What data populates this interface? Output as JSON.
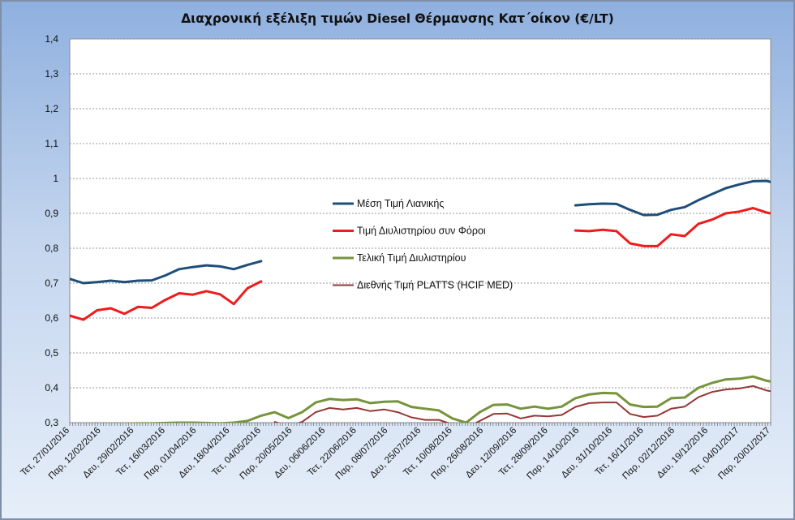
{
  "chart_data": {
    "type": "line",
    "title": "Διαχρονική εξέλιξη τιμών Diesel Θέρμανσης Κατ΄οίκον (€/LT)",
    "xlabel": "",
    "ylabel": "",
    "ylim": [
      0.3,
      1.4
    ],
    "yticks": [
      "0,3",
      "0,4",
      "0,5",
      "0,6",
      "0,7",
      "0,8",
      "0,9",
      "1",
      "1,1",
      "1,2",
      "1,3",
      "1,4"
    ],
    "grid": "horizontal-dashed",
    "legend_position": "center",
    "x": [
      "2016-01-27",
      "2016-02-03",
      "2016-02-10",
      "2016-02-17",
      "2016-02-24",
      "2016-03-02",
      "2016-03-09",
      "2016-03-16",
      "2016-03-23",
      "2016-03-30",
      "2016-04-06",
      "2016-04-13",
      "2016-04-20",
      "2016-04-27",
      "2016-05-04",
      "2016-05-11",
      "2016-05-18",
      "2016-05-25",
      "2016-06-01",
      "2016-06-08",
      "2016-06-15",
      "2016-06-22",
      "2016-06-29",
      "2016-07-06",
      "2016-07-13",
      "2016-07-20",
      "2016-07-27",
      "2016-08-03",
      "2016-08-10",
      "2016-08-17",
      "2016-08-24",
      "2016-08-31",
      "2016-09-07",
      "2016-09-14",
      "2016-09-21",
      "2016-09-28",
      "2016-10-05",
      "2016-10-12",
      "2016-10-19",
      "2016-10-26",
      "2016-11-02",
      "2016-11-09",
      "2016-11-16",
      "2016-11-23",
      "2016-11-30",
      "2016-12-07",
      "2016-12-14",
      "2016-12-21",
      "2016-12-28",
      "2017-01-04",
      "2017-01-11",
      "2017-01-18",
      "2017-01-20"
    ],
    "xtick_labels": [
      {
        "date": "2016-01-27",
        "label": "Τετ, 27/01/2016"
      },
      {
        "date": "2016-02-12",
        "label": "Παρ, 12/02/2016"
      },
      {
        "date": "2016-02-29",
        "label": "Δευ, 29/02/2016"
      },
      {
        "date": "2016-03-16",
        "label": "Τετ, 16/03/2016"
      },
      {
        "date": "2016-04-01",
        "label": "Παρ, 01/04/2016"
      },
      {
        "date": "2016-04-18",
        "label": "Δευ, 18/04/2016"
      },
      {
        "date": "2016-05-04",
        "label": "Τετ, 04/05/2016"
      },
      {
        "date": "2016-05-20",
        "label": "Παρ, 20/05/2016"
      },
      {
        "date": "2016-06-06",
        "label": "Δευ, 06/06/2016"
      },
      {
        "date": "2016-06-22",
        "label": "Τετ, 22/06/2016"
      },
      {
        "date": "2016-07-08",
        "label": "Παρ, 08/07/2016"
      },
      {
        "date": "2016-07-25",
        "label": "Δευ, 25/07/2016"
      },
      {
        "date": "2016-08-10",
        "label": "Τετ, 10/08/2016"
      },
      {
        "date": "2016-08-26",
        "label": "Παρ, 26/08/2016"
      },
      {
        "date": "2016-09-12",
        "label": "Δευ, 12/09/2016"
      },
      {
        "date": "2016-09-28",
        "label": "Τετ, 28/09/2016"
      },
      {
        "date": "2016-10-14",
        "label": "Παρ, 14/10/2016"
      },
      {
        "date": "2016-10-31",
        "label": "Δευ, 31/10/2016"
      },
      {
        "date": "2016-11-16",
        "label": "Τετ, 16/11/2016"
      },
      {
        "date": "2016-12-02",
        "label": "Παρ, 02/12/2016"
      },
      {
        "date": "2016-12-19",
        "label": "Δευ, 19/12/2016"
      },
      {
        "date": "2017-01-04",
        "label": "Τετ, 04/01/2017"
      },
      {
        "date": "2017-01-20",
        "label": "Παρ, 20/01/2017"
      }
    ],
    "series": [
      {
        "name": "Μέση Τιμή Λιανικής",
        "color": "#1f4e79",
        "values": [
          0.712,
          0.7,
          0.703,
          0.707,
          0.703,
          0.707,
          0.708,
          0.722,
          0.74,
          0.746,
          0.751,
          0.748,
          0.74,
          0.752,
          0.763,
          null,
          null,
          null,
          null,
          null,
          null,
          null,
          null,
          null,
          null,
          null,
          null,
          null,
          null,
          null,
          null,
          null,
          null,
          null,
          null,
          null,
          null,
          0.923,
          0.926,
          0.928,
          0.927,
          0.91,
          0.895,
          0.896,
          0.91,
          0.918,
          0.938,
          0.955,
          0.972,
          0.983,
          0.992,
          0.993,
          0.99
        ]
      },
      {
        "name": "Τιμή Διυλιστηρίου συν Φόροι",
        "color": "#ee1c1c",
        "values": [
          0.607,
          0.595,
          0.622,
          0.628,
          0.612,
          0.632,
          0.629,
          0.652,
          0.671,
          0.667,
          0.677,
          0.668,
          0.64,
          0.685,
          0.705,
          null,
          null,
          null,
          null,
          null,
          null,
          null,
          null,
          null,
          null,
          null,
          null,
          null,
          null,
          null,
          null,
          null,
          null,
          null,
          null,
          null,
          null,
          0.851,
          0.849,
          0.853,
          0.849,
          0.814,
          0.806,
          0.806,
          0.84,
          0.835,
          0.87,
          0.882,
          0.9,
          0.905,
          0.915,
          0.902,
          0.9
        ]
      },
      {
        "name": "Τελική Τιμή Διυλιστηρίου",
        "color": "#77933c",
        "values": [
          0.296,
          0.296,
          0.297,
          0.297,
          0.297,
          0.298,
          0.298,
          0.299,
          0.3,
          0.3,
          0.299,
          0.298,
          0.3,
          0.305,
          0.32,
          0.33,
          0.313,
          0.33,
          0.358,
          0.368,
          0.365,
          0.367,
          0.356,
          0.36,
          0.361,
          0.345,
          0.34,
          0.335,
          0.312,
          0.3,
          0.33,
          0.351,
          0.352,
          0.34,
          0.346,
          0.34,
          0.346,
          0.37,
          0.381,
          0.385,
          0.384,
          0.352,
          0.345,
          0.346,
          0.37,
          0.372,
          0.4,
          0.414,
          0.424,
          0.426,
          0.432,
          0.42,
          0.418
        ]
      },
      {
        "name": "Διεθνής Τιμή PLATTS (HCIF MED)",
        "color": "#953735",
        "values": [
          null,
          null,
          null,
          null,
          null,
          null,
          null,
          null,
          null,
          null,
          null,
          null,
          null,
          null,
          null,
          0.302,
          0.29,
          0.302,
          0.33,
          0.342,
          0.338,
          0.342,
          0.333,
          0.338,
          0.33,
          0.315,
          0.308,
          0.308,
          0.295,
          0.285,
          0.305,
          0.325,
          0.326,
          0.312,
          0.32,
          0.318,
          0.322,
          0.345,
          0.356,
          0.358,
          0.358,
          0.325,
          0.316,
          0.32,
          0.34,
          0.346,
          0.373,
          0.388,
          0.395,
          0.398,
          0.405,
          0.392,
          0.39
        ]
      }
    ]
  }
}
